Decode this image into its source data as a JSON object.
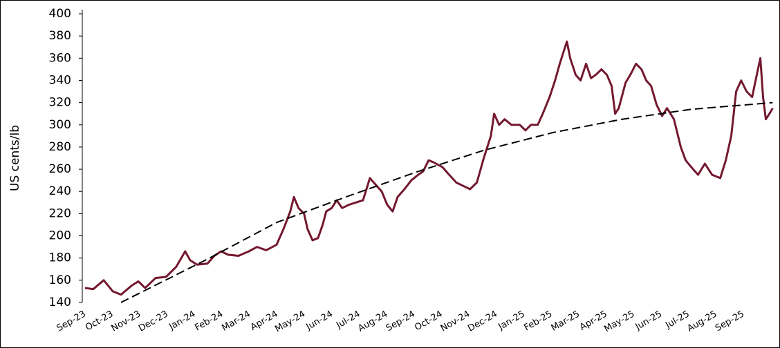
{
  "chart_data": {
    "type": "line",
    "y_label": "US cents/lb",
    "xlim": [
      0,
      25.1
    ],
    "xticks": [
      {
        "value": 0,
        "label": "Sep-23"
      },
      {
        "value": 1,
        "label": "Oct-23"
      },
      {
        "value": 2,
        "label": "Nov-23"
      },
      {
        "value": 3,
        "label": "Dec-23"
      },
      {
        "value": 4,
        "label": "Jan-24"
      },
      {
        "value": 5,
        "label": "Feb-24"
      },
      {
        "value": 6,
        "label": "Mar-24"
      },
      {
        "value": 7,
        "label": "Apr-24"
      },
      {
        "value": 8,
        "label": "May-24"
      },
      {
        "value": 9,
        "label": "Jun-24"
      },
      {
        "value": 10,
        "label": "Jul-24"
      },
      {
        "value": 11,
        "label": "Aug-24"
      },
      {
        "value": 12,
        "label": "Sep-24"
      },
      {
        "value": 13,
        "label": "Oct-24"
      },
      {
        "value": 14,
        "label": "Nov-24"
      },
      {
        "value": 15,
        "label": "Dec-24"
      },
      {
        "value": 16,
        "label": "Jan-25"
      },
      {
        "value": 17,
        "label": "Feb-25"
      },
      {
        "value": 18,
        "label": "Mar-25"
      },
      {
        "value": 19,
        "label": "Apr-25"
      },
      {
        "value": 20,
        "label": "May-25"
      },
      {
        "value": 21,
        "label": "Jun-25"
      },
      {
        "value": 22,
        "label": "Jul-25"
      },
      {
        "value": 23,
        "label": "Aug-25"
      },
      {
        "value": 24,
        "label": "Sep-25"
      }
    ],
    "ylim": [
      140,
      400
    ],
    "yticks": [
      140,
      160,
      180,
      200,
      220,
      240,
      260,
      280,
      300,
      320,
      340,
      360,
      380,
      400
    ],
    "grid": false,
    "series": [
      {
        "color": "#74182f",
        "dash": false,
        "x": [
          0,
          0.3,
          0.68,
          1.01,
          1.31,
          1.69,
          1.94,
          2.19,
          2.57,
          2.95,
          3.32,
          3.65,
          3.83,
          4.08,
          4.46,
          4.71,
          4.96,
          5.21,
          5.59,
          5.97,
          6.27,
          6.6,
          6.98,
          7.23,
          7.48,
          7.61,
          7.78,
          7.98,
          8.11,
          8.29,
          8.49,
          8.66,
          8.79,
          8.99,
          9.17,
          9.37,
          9.62,
          9.87,
          10.13,
          10.38,
          10.63,
          10.81,
          11.01,
          11.21,
          11.39,
          11.64,
          11.89,
          12.14,
          12.32,
          12.52,
          12.72,
          13.02,
          13.27,
          13.53,
          13.78,
          14.03,
          14.28,
          14.53,
          14.79,
          14.91,
          15.09,
          15.29,
          15.54,
          15.84,
          16.05,
          16.25,
          16.5,
          16.68,
          16.93,
          17.13,
          17.3,
          17.43,
          17.56,
          17.68,
          17.88,
          18.06,
          18.26,
          18.44,
          18.61,
          18.82,
          19.02,
          19.19,
          19.32,
          19.45,
          19.7,
          19.87,
          20.08,
          20.28,
          20.45,
          20.63,
          20.83,
          21.03,
          21.21,
          21.46,
          21.71,
          21.89,
          22.09,
          22.34,
          22.59,
          22.85,
          23.15,
          23.35,
          23.55,
          23.73,
          23.91,
          24.11,
          24.31,
          24.48,
          24.61,
          24.71,
          24.81,
          24.94,
          25.06
        ],
        "values": [
          153,
          152,
          160,
          150,
          147,
          155,
          159,
          153,
          162,
          163,
          172,
          186,
          178,
          174,
          175,
          182,
          186,
          183,
          182,
          186,
          190,
          187,
          192,
          206,
          222,
          235,
          225,
          220,
          206,
          196,
          198,
          210,
          222,
          225,
          232,
          225,
          228,
          230,
          232,
          252,
          245,
          240,
          228,
          222,
          235,
          242,
          250,
          255,
          258,
          268,
          266,
          262,
          255,
          248,
          245,
          242,
          248,
          270,
          290,
          310,
          300,
          305,
          300,
          300,
          295,
          300,
          300,
          310,
          325,
          340,
          355,
          365,
          375,
          360,
          345,
          340,
          355,
          342,
          345,
          350,
          345,
          335,
          310,
          315,
          338,
          345,
          355,
          350,
          340,
          335,
          318,
          308,
          315,
          305,
          280,
          268,
          262,
          255,
          265,
          255,
          252,
          268,
          290,
          330,
          340,
          330,
          325,
          345,
          360,
          325,
          305,
          310,
          315
        ]
      },
      {
        "color": "#000000",
        "dash": true,
        "x": [
          1.31,
          4.46,
          6.98,
          9.5,
          12.02,
          14.53,
          17.05,
          19.57,
          22.09,
          25.06
        ],
        "values": [
          140,
          179,
          212,
          235,
          257,
          277,
          293,
          305,
          314,
          320
        ]
      }
    ]
  }
}
